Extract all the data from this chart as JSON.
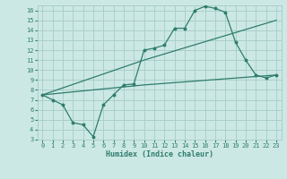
{
  "xlabel": "Humidex (Indice chaleur)",
  "bg_color": "#cce8e4",
  "grid_color": "#aacfcb",
  "line_color": "#2e7d6e",
  "xlim": [
    -0.5,
    23.5
  ],
  "ylim": [
    3,
    16.5
  ],
  "xticks": [
    0,
    1,
    2,
    3,
    4,
    5,
    6,
    7,
    8,
    9,
    10,
    11,
    12,
    13,
    14,
    15,
    16,
    17,
    18,
    19,
    20,
    21,
    22,
    23
  ],
  "yticks": [
    3,
    4,
    5,
    6,
    7,
    8,
    9,
    10,
    11,
    12,
    13,
    14,
    15,
    16
  ],
  "line1_x": [
    0,
    1,
    2,
    3,
    4,
    5,
    6,
    7,
    8,
    9,
    10,
    11,
    12,
    13,
    14,
    15,
    16,
    17,
    18,
    19,
    20,
    21,
    22,
    23
  ],
  "line1_y": [
    7.5,
    7.0,
    6.5,
    4.7,
    4.5,
    3.3,
    6.5,
    7.5,
    8.5,
    8.6,
    12.0,
    12.2,
    12.5,
    14.2,
    14.2,
    16.0,
    16.4,
    16.2,
    15.8,
    12.8,
    11.0,
    9.5,
    9.2,
    9.5
  ],
  "line2_x": [
    0,
    10,
    23
  ],
  "line2_y": [
    7.5,
    11.0,
    15.0
  ],
  "line3_x": [
    0,
    10,
    23
  ],
  "line3_y": [
    7.5,
    8.5,
    9.5
  ]
}
